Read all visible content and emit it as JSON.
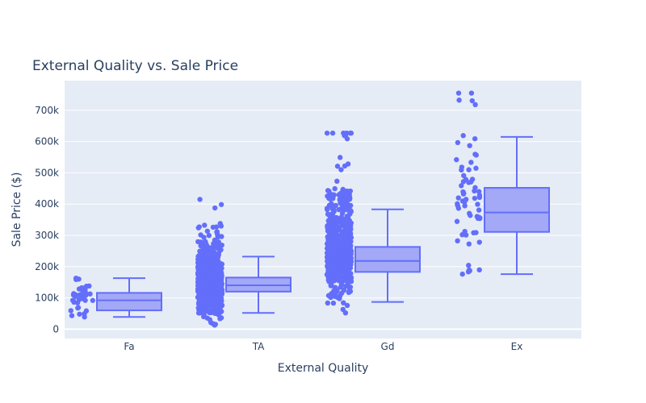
{
  "chart_data": {
    "type": "box",
    "title": "External Quality vs. Sale Price",
    "xlabel": "External Quality",
    "ylabel": "Sale Price ($)",
    "ylim": [
      -30000,
      795000
    ],
    "yticks": [
      0,
      100000,
      200000,
      300000,
      400000,
      500000,
      600000,
      700000
    ],
    "ytick_labels": [
      "0",
      "100k",
      "200k",
      "300k",
      "400k",
      "500k",
      "600k",
      "700k"
    ],
    "categories": [
      "Fa",
      "TA",
      "Gd",
      "Ex"
    ],
    "grid": true,
    "show_points": "all",
    "colors": {
      "box": "#636efa",
      "box_fill": "#a3a8f7",
      "plot_bg": "#e5ecf6",
      "grid": "#ffffff",
      "text": "#2a3f5f"
    },
    "boxes": [
      {
        "category": "Fa",
        "lowerfence": 39000,
        "q1": 60000,
        "median": 92000,
        "q3": 116000,
        "upperfence": 163000
      },
      {
        "category": "TA",
        "lowerfence": 52000,
        "q1": 120000,
        "median": 140000,
        "q3": 165000,
        "upperfence": 232000
      },
      {
        "category": "Gd",
        "lowerfence": 87000,
        "q1": 183000,
        "median": 218000,
        "q3": 263000,
        "upperfence": 383000
      },
      {
        "category": "Ex",
        "lowerfence": 176000,
        "q1": 311000,
        "median": 373000,
        "q3": 452000,
        "upperfence": 615000
      }
    ],
    "points": [
      {
        "category": "Fa",
        "n": 35,
        "min": 39000,
        "max": 163000,
        "dist": [
          [
            39000,
            0.03
          ],
          [
            55000,
            0.1
          ],
          [
            62000,
            0.15
          ],
          [
            80000,
            0.15
          ],
          [
            95000,
            0.12
          ],
          [
            110000,
            0.15
          ],
          [
            125000,
            0.15
          ],
          [
            140000,
            0.1
          ],
          [
            163000,
            0.05
          ]
        ]
      },
      {
        "category": "TA",
        "n": 850,
        "min": 13000,
        "max": 415000,
        "dist": [
          [
            13000,
            0.01
          ],
          [
            50000,
            0.06
          ],
          [
            80000,
            0.15
          ],
          [
            110000,
            0.22
          ],
          [
            140000,
            0.24
          ],
          [
            170000,
            0.16
          ],
          [
            200000,
            0.09
          ],
          [
            240000,
            0.04
          ],
          [
            280000,
            0.02
          ],
          [
            340000,
            0.007
          ],
          [
            415000,
            0.003
          ]
        ]
      },
      {
        "category": "Gd",
        "n": 700,
        "min": 52000,
        "max": 627000,
        "dist": [
          [
            52000,
            0.005
          ],
          [
            100000,
            0.04
          ],
          [
            150000,
            0.12
          ],
          [
            190000,
            0.18
          ],
          [
            220000,
            0.2
          ],
          [
            260000,
            0.18
          ],
          [
            300000,
            0.12
          ],
          [
            350000,
            0.08
          ],
          [
            400000,
            0.05
          ],
          [
            450000,
            0.015
          ],
          [
            585000,
            0.005
          ],
          [
            627000,
            0.005
          ]
        ]
      },
      {
        "category": "Ex",
        "n": 65,
        "min": 176000,
        "max": 755000,
        "dist": [
          [
            176000,
            0.06
          ],
          [
            190000,
            0.04
          ],
          [
            260000,
            0.08
          ],
          [
            300000,
            0.15
          ],
          [
            350000,
            0.18
          ],
          [
            400000,
            0.17
          ],
          [
            450000,
            0.13
          ],
          [
            500000,
            0.08
          ],
          [
            550000,
            0.05
          ],
          [
            615000,
            0.04
          ],
          [
            755000,
            0.02
          ]
        ]
      }
    ]
  }
}
